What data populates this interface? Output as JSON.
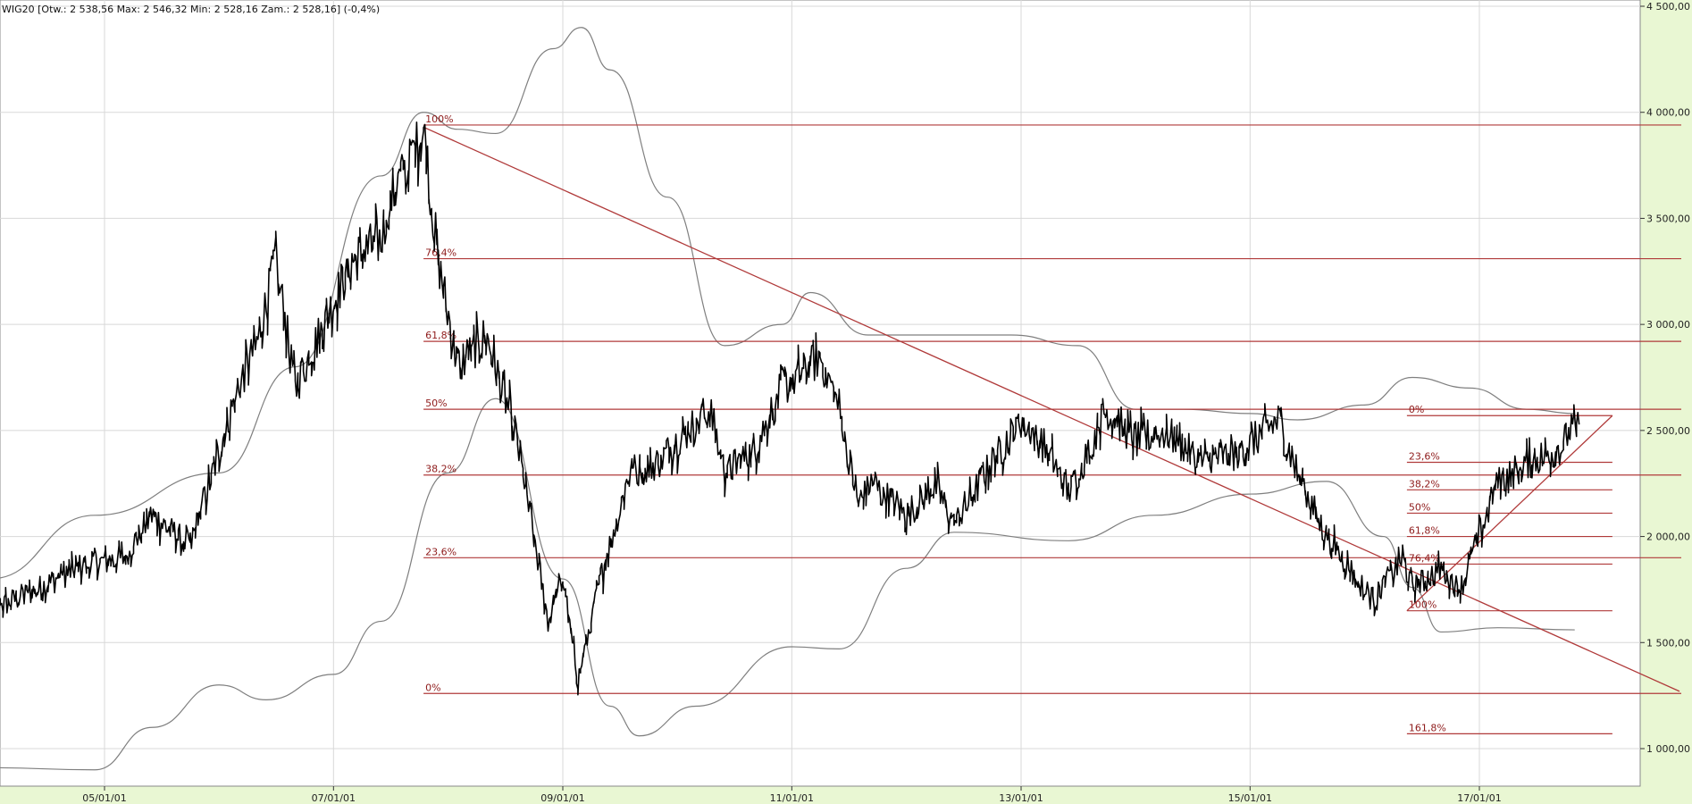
{
  "header": {
    "text": "WIG20 [Otw.: 2 538,56  Max: 2 546,32  Min: 2 528,16  Zam.: 2 528,16] (-0,4%)"
  },
  "colors": {
    "background": "#e9f7d3",
    "plot": "#ffffff",
    "grid": "#d8d8d8",
    "price": "#000000",
    "envelope": "#7f7f7f",
    "fib": "#b03a3a",
    "fib_text": "#8e1b1b"
  },
  "chart_data": {
    "type": "line",
    "title": "",
    "xlabel": "",
    "ylabel": "",
    "xlim": [
      "2003-10-01",
      "2018-10-01"
    ],
    "ylim": [
      800,
      4500
    ],
    "grid": true,
    "x_ticks": [
      "05/01/01",
      "07/01/01",
      "09/01/01",
      "11/01/01",
      "13/01/01",
      "15/01/01",
      "17/01/01"
    ],
    "x_tick_dates": [
      "2005-01-01",
      "2007-01-01",
      "2009-01-01",
      "2011-01-01",
      "2013-01-01",
      "2015-01-01",
      "2017-01-01"
    ],
    "y_ticks": [
      1000,
      1500,
      2000,
      2500,
      3000,
      3500,
      4000,
      4500
    ],
    "y_tick_labels": [
      "1 000,00",
      "1 500,00",
      "2 000,00",
      "2 500,00",
      "3 000,00",
      "3 500,00",
      "4 000,00",
      "4 500,00"
    ],
    "series": [
      {
        "role": "price",
        "x": [
          "2004-01-01",
          "2004-06-01",
          "2004-10-01",
          "2005-03-01",
          "2005-06-01",
          "2005-10-01",
          "2006-01-01",
          "2006-03-01",
          "2006-05-01",
          "2006-07-01",
          "2006-09-01",
          "2006-12-01",
          "2007-03-01",
          "2007-06-01",
          "2007-07-01",
          "2007-09-01",
          "2007-10-15",
          "2007-12-01",
          "2008-02-01",
          "2008-05-01",
          "2008-08-01",
          "2008-10-01",
          "2008-11-15",
          "2009-01-01",
          "2009-02-18",
          "2009-05-01",
          "2009-08-01",
          "2009-11-01",
          "2010-01-01",
          "2010-04-15",
          "2010-06-01",
          "2010-09-01",
          "2010-12-01",
          "2011-03-01",
          "2011-04-01",
          "2011-06-01",
          "2011-08-01",
          "2011-09-15",
          "2012-01-01",
          "2012-04-01",
          "2012-06-01",
          "2012-10-01",
          "2013-01-01",
          "2013-04-01",
          "2013-06-01",
          "2013-10-01",
          "2014-01-01",
          "2014-04-01",
          "2014-08-01",
          "2014-12-01",
          "2015-04-01",
          "2015-06-01",
          "2015-09-01",
          "2016-01-01",
          "2016-02-01",
          "2016-05-01",
          "2016-06-01",
          "2016-09-01",
          "2016-11-01",
          "2017-03-01",
          "2017-06-01",
          "2017-09-01",
          "2017-11-15"
        ],
        "values": [
          1650,
          1750,
          1850,
          1900,
          2100,
          1950,
          2400,
          2700,
          2900,
          3300,
          2700,
          3000,
          3300,
          3400,
          3600,
          3750,
          3920,
          3300,
          2800,
          2950,
          2500,
          2000,
          1600,
          1800,
          1320,
          1800,
          2300,
          2350,
          2450,
          2600,
          2300,
          2400,
          2700,
          2800,
          2850,
          2600,
          2150,
          2250,
          2100,
          2250,
          2050,
          2350,
          2550,
          2400,
          2200,
          2600,
          2450,
          2500,
          2350,
          2400,
          2550,
          2300,
          2000,
          1750,
          1700,
          1900,
          1750,
          1850,
          1750,
          2250,
          2350,
          2400,
          2528
        ]
      },
      {
        "role": "envelope-upper",
        "x": [
          "2004-01-01",
          "2004-12-01",
          "2006-01-01",
          "2006-09-01",
          "2007-06-01",
          "2007-10-15",
          "2008-02-01",
          "2008-06-01",
          "2008-12-01",
          "2009-03-01",
          "2009-06-01",
          "2009-12-01",
          "2010-06-01",
          "2010-12-01",
          "2011-03-01",
          "2011-09-01",
          "2012-03-01",
          "2012-12-01",
          "2013-07-01",
          "2014-01-01",
          "2014-06-01",
          "2015-01-01",
          "2015-06-01",
          "2016-01-01",
          "2016-06-01",
          "2016-12-01",
          "2017-06-01",
          "2017-11-01"
        ],
        "values": [
          1800,
          2100,
          2300,
          2800,
          3700,
          4000,
          3920,
          3900,
          4300,
          4400,
          4200,
          3600,
          2900,
          3000,
          3150,
          2950,
          2950,
          2950,
          2900,
          2600,
          2600,
          2580,
          2550,
          2620,
          2750,
          2700,
          2600,
          2580
        ]
      },
      {
        "role": "envelope-lower",
        "x": [
          "2004-01-01",
          "2004-12-01",
          "2005-06-01",
          "2006-01-01",
          "2006-06-01",
          "2007-01-01",
          "2007-06-01",
          "2008-01-01",
          "2008-06-01",
          "2009-01-01",
          "2009-06-01",
          "2009-09-01",
          "2010-03-01",
          "2011-01-01",
          "2011-06-01",
          "2012-01-01",
          "2012-06-01",
          "2013-06-01",
          "2014-03-01",
          "2015-01-01",
          "2015-09-01",
          "2016-03-01",
          "2016-06-01",
          "2016-09-01",
          "2017-03-01",
          "2017-11-01"
        ],
        "values": [
          910,
          900,
          1100,
          1300,
          1230,
          1350,
          1600,
          2300,
          2650,
          1800,
          1200,
          1060,
          1200,
          1480,
          1470,
          1850,
          2020,
          1980,
          2100,
          2200,
          2260,
          2000,
          1760,
          1550,
          1570,
          1560
        ]
      }
    ],
    "fibonacci_major": {
      "start_date": "2007-10-15",
      "levels": [
        {
          "label": "100%",
          "value": 3940
        },
        {
          "label": "76,4%",
          "value": 3310
        },
        {
          "label": "61,8%",
          "value": 2920
        },
        {
          "label": "50%",
          "value": 2600
        },
        {
          "label": "38,2%",
          "value": 2290
        },
        {
          "label": "23,6%",
          "value": 1900
        },
        {
          "label": "0%",
          "value": 1260
        }
      ]
    },
    "fibonacci_minor": {
      "start_date": "2016-05-15",
      "end_date": "2018-03-01",
      "levels": [
        {
          "label": "0%",
          "value": 2570
        },
        {
          "label": "23,6%",
          "value": 2350
        },
        {
          "label": "38,2%",
          "value": 2220
        },
        {
          "label": "50%",
          "value": 2110
        },
        {
          "label": "61,8%",
          "value": 2000
        },
        {
          "label": "76,4%",
          "value": 1870
        },
        {
          "label": "100%",
          "value": 1650
        },
        {
          "label": "161,8%",
          "value": 1070
        }
      ]
    },
    "trendlines": [
      {
        "from": {
          "x": "2007-10-15",
          "y": 3930
        },
        "to": {
          "x": "2018-10-01",
          "y": 1270
        }
      },
      {
        "from": {
          "x": "2016-05-15",
          "y": 1650
        },
        "to": {
          "x": "2018-03-01",
          "y": 2570
        }
      }
    ]
  }
}
